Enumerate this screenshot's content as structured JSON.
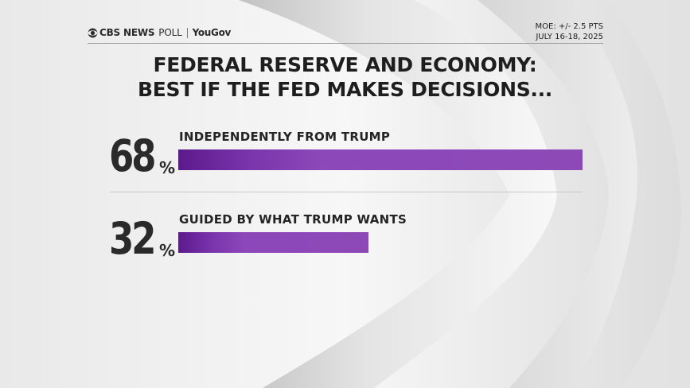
{
  "header": {
    "brand": "CBS NEWS",
    "poll": "POLL",
    "partner": "YouGov",
    "moe": "MOE: +/- 2.5 PTS",
    "dates": "JULY 16-18, 2025"
  },
  "title_line1": "FEDERAL RESERVE AND ECONOMY:",
  "title_line2": "BEST IF THE FED MAKES DECISIONS...",
  "chart_data": {
    "type": "bar",
    "title": "FEDERAL RESERVE AND ECONOMY: BEST IF THE FED MAKES DECISIONS...",
    "categories": [
      "INDEPENDENTLY FROM TRUMP",
      "GUIDED BY WHAT TRUMP WANTS"
    ],
    "values": [
      68,
      32
    ],
    "value_labels": [
      "68",
      "32"
    ],
    "unit": "%",
    "xlim": [
      0,
      68
    ],
    "orientation": "horizontal",
    "bar_color": "#8d4ab7",
    "grid": false
  }
}
